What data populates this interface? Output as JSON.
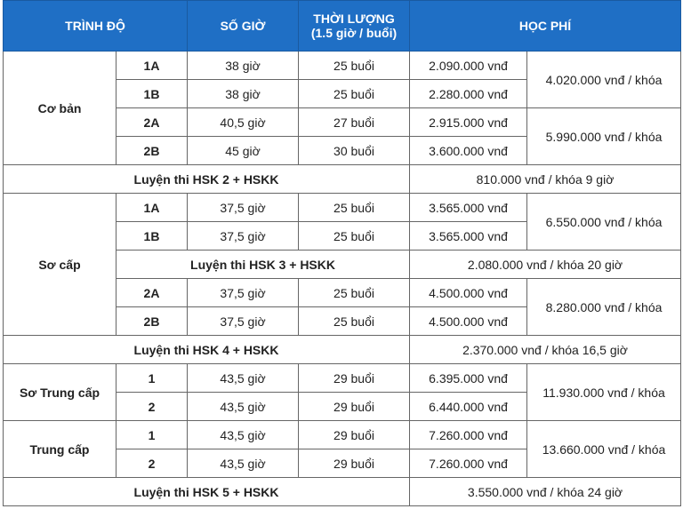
{
  "header": {
    "level": "TRÌNH ĐỘ",
    "hours": "SỐ GIỜ",
    "duration_line1": "THỜI LƯỢNG",
    "duration_line2": "(1.5 giờ / buổi)",
    "fee": "HỌC PHÍ"
  },
  "colors": {
    "header_bg": "#1f6fc5",
    "header_text": "#ffffff",
    "border": "#666666"
  },
  "groups": {
    "co_ban": {
      "name": "Cơ bản",
      "rows": [
        {
          "sub": "1A",
          "hours": "38 giờ",
          "sessions": "25 buổi",
          "price": "2.090.000 vnđ"
        },
        {
          "sub": "1B",
          "hours": "38 giờ",
          "sessions": "25 buổi",
          "price": "2.280.000 vnđ"
        },
        {
          "sub": "2A",
          "hours": "40,5 giờ",
          "sessions": "27 buổi",
          "price": "2.915.000 vnđ"
        },
        {
          "sub": "2B",
          "hours": "45 giờ",
          "sessions": "30 buổi",
          "price": "3.600.000 vnđ"
        }
      ],
      "totals": [
        "4.020.000 vnđ / khóa",
        "5.990.000 vnđ / khóa"
      ]
    },
    "hsk2": {
      "name": "Luyện thi HSK 2 + HSKK",
      "price": "810.000 vnđ / khóa 9 giờ"
    },
    "so_cap": {
      "name": "Sơ cấp",
      "rows": [
        {
          "sub": "1A",
          "hours": "37,5 giờ",
          "sessions": "25 buổi",
          "price": "3.565.000 vnđ"
        },
        {
          "sub": "1B",
          "hours": "37,5 giờ",
          "sessions": "25 buổi",
          "price": "3.565.000 vnđ"
        },
        {
          "sub": "2A",
          "hours": "37,5 giờ",
          "sessions": "25 buổi",
          "price": "4.500.000 vnđ"
        },
        {
          "sub": "2B",
          "hours": "37,5 giờ",
          "sessions": "25 buổi",
          "price": "4.500.000 vnđ"
        }
      ],
      "totals": [
        "6.550.000 vnđ / khóa",
        "8.280.000 vnđ / khóa"
      ],
      "hsk3": {
        "name": "Luyện thi HSK 3 + HSKK",
        "price": "2.080.000 vnđ / khóa 20 giờ"
      }
    },
    "hsk4": {
      "name": "Luyện thi HSK 4 + HSKK",
      "price": "2.370.000 vnđ / khóa 16,5 giờ"
    },
    "so_trung_cap": {
      "name": "Sơ Trung cấp",
      "rows": [
        {
          "sub": "1",
          "hours": "43,5 giờ",
          "sessions": "29 buổi",
          "price": "6.395.000 vnđ"
        },
        {
          "sub": "2",
          "hours": "43,5 giờ",
          "sessions": "29 buổi",
          "price": "6.440.000 vnđ"
        }
      ],
      "total": "11.930.000 vnđ / khóa"
    },
    "trung_cap": {
      "name": "Trung cấp",
      "rows": [
        {
          "sub": "1",
          "hours": "43,5 giờ",
          "sessions": "29 buổi",
          "price": "7.260.000 vnđ"
        },
        {
          "sub": "2",
          "hours": "43,5 giờ",
          "sessions": "29 buổi",
          "price": "7.260.000 vnđ"
        }
      ],
      "total": "13.660.000 vnđ / khóa"
    },
    "hsk5": {
      "name": "Luyện thi HSK 5 + HSKK",
      "price": "3.550.000 vnđ / khóa 24 giờ"
    }
  }
}
